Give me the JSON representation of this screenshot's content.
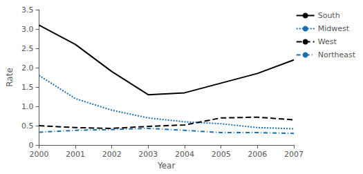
{
  "chart_data": {
    "type": "line",
    "x": [
      2000,
      2001,
      2002,
      2003,
      2004,
      2005,
      2006,
      2007
    ],
    "series": [
      {
        "name": "South",
        "color": "#000000",
        "line_style": "solid",
        "values": [
          3.1,
          2.6,
          1.9,
          1.3,
          1.35,
          1.6,
          1.85,
          2.2
        ]
      },
      {
        "name": "Midwest",
        "color": "#1a6faf",
        "line_style": "dotted",
        "values": [
          1.8,
          1.2,
          0.9,
          0.7,
          0.6,
          0.55,
          0.45,
          0.42
        ]
      },
      {
        "name": "West",
        "color": "#000000",
        "line_style": "dashed",
        "values": [
          0.5,
          0.45,
          0.43,
          0.48,
          0.52,
          0.7,
          0.72,
          0.65
        ]
      },
      {
        "name": "Northeast",
        "color": "#1a6faf",
        "line_style": "dashdot",
        "values": [
          0.33,
          0.38,
          0.4,
          0.43,
          0.38,
          0.32,
          0.32,
          0.3
        ]
      }
    ],
    "xlabel": "Year",
    "ylabel": "Rate",
    "xlim": [
      2000,
      2007
    ],
    "xticks": [
      2000,
      2001,
      2002,
      2003,
      2004,
      2005,
      2006,
      2007
    ],
    "ylim": [
      0,
      3.5
    ],
    "yticks": [
      0,
      0.5,
      {
        "value": 1.0,
        "label": "1.0"
      },
      1.5,
      {
        "value": 2.0,
        "label": "2.0"
      },
      2.5,
      {
        "value": 3.0,
        "label": "3.0"
      },
      3.5
    ],
    "grid": false,
    "legend": "upper right"
  }
}
